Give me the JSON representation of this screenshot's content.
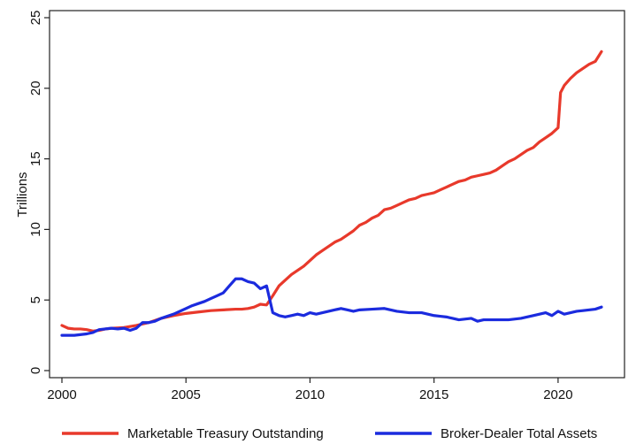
{
  "chart_data": {
    "type": "line",
    "ylabel": "Trillions",
    "xlim": [
      2000,
      2022
    ],
    "ylim": [
      0,
      25
    ],
    "x_ticks": [
      "2000",
      "2005",
      "2010",
      "2015",
      "2020"
    ],
    "y_ticks": [
      "0",
      "5",
      "10",
      "15",
      "20",
      "25"
    ],
    "grid": false,
    "legend_position": "bottom",
    "series": [
      {
        "name": "Marketable Treasury Outstanding",
        "color": "#e8392b",
        "x": [
          2000,
          2000.25,
          2000.5,
          2000.75,
          2001,
          2001.25,
          2001.5,
          2001.75,
          2002,
          2002.5,
          2003,
          2003.5,
          2004,
          2004.5,
          2005,
          2005.5,
          2006,
          2006.5,
          2007,
          2007.25,
          2007.5,
          2007.75,
          2008,
          2008.25,
          2008.5,
          2008.75,
          2009,
          2009.25,
          2009.5,
          2009.75,
          2010,
          2010.25,
          2010.5,
          2010.75,
          2011,
          2011.25,
          2011.5,
          2011.75,
          2012,
          2012.25,
          2012.5,
          2012.75,
          2013,
          2013.25,
          2013.5,
          2013.75,
          2014,
          2014.25,
          2014.5,
          2014.75,
          2015,
          2015.25,
          2015.5,
          2015.75,
          2016,
          2016.25,
          2016.5,
          2016.75,
          2017,
          2017.25,
          2017.5,
          2017.75,
          2018,
          2018.25,
          2018.5,
          2018.75,
          2019,
          2019.25,
          2019.5,
          2019.75,
          2020,
          2020.1,
          2020.25,
          2020.5,
          2020.75,
          2021,
          2021.25,
          2021.5,
          2021.75
        ],
        "values": [
          3.2,
          3.0,
          2.95,
          2.95,
          2.9,
          2.8,
          2.85,
          2.95,
          3.0,
          3.05,
          3.2,
          3.4,
          3.7,
          3.9,
          4.05,
          4.15,
          4.25,
          4.3,
          4.35,
          4.35,
          4.4,
          4.5,
          4.7,
          4.65,
          5.3,
          6.0,
          6.4,
          6.8,
          7.1,
          7.4,
          7.8,
          8.2,
          8.5,
          8.8,
          9.1,
          9.3,
          9.6,
          9.9,
          10.3,
          10.5,
          10.8,
          11.0,
          11.4,
          11.5,
          11.7,
          11.9,
          12.1,
          12.2,
          12.4,
          12.5,
          12.6,
          12.8,
          13.0,
          13.2,
          13.4,
          13.5,
          13.7,
          13.8,
          13.9,
          14.0,
          14.2,
          14.5,
          14.8,
          15.0,
          15.3,
          15.6,
          15.8,
          16.2,
          16.5,
          16.8,
          17.2,
          19.7,
          20.2,
          20.7,
          21.1,
          21.4,
          21.7,
          21.9,
          22.6
        ]
      },
      {
        "name": "Broker-Dealer Total Assets",
        "color": "#1b2bde",
        "x": [
          2000,
          2000.5,
          2001,
          2001.25,
          2001.5,
          2002,
          2002.25,
          2002.5,
          2002.75,
          2003,
          2003.25,
          2003.5,
          2003.75,
          2004,
          2004.5,
          2005,
          2005.25,
          2005.5,
          2005.75,
          2006,
          2006.25,
          2006.5,
          2006.75,
          2007,
          2007.25,
          2007.5,
          2007.75,
          2008,
          2008.25,
          2008.5,
          2008.75,
          2009,
          2009.25,
          2009.5,
          2009.75,
          2010,
          2010.25,
          2010.5,
          2010.75,
          2011,
          2011.25,
          2011.5,
          2011.75,
          2012,
          2012.5,
          2013,
          2013.5,
          2014,
          2014.5,
          2015,
          2015.25,
          2015.5,
          2015.75,
          2016,
          2016.5,
          2016.75,
          2017,
          2017.5,
          2018,
          2018.5,
          2019,
          2019.25,
          2019.5,
          2019.75,
          2020,
          2020.25,
          2020.5,
          2020.75,
          2021,
          2021.5,
          2021.75
        ],
        "values": [
          2.5,
          2.5,
          2.6,
          2.7,
          2.9,
          3.0,
          2.95,
          3.0,
          2.85,
          3.0,
          3.4,
          3.4,
          3.5,
          3.7,
          4.0,
          4.4,
          4.6,
          4.75,
          4.9,
          5.1,
          5.3,
          5.5,
          6.0,
          6.5,
          6.5,
          6.3,
          6.2,
          5.8,
          6.0,
          4.1,
          3.9,
          3.8,
          3.9,
          4.0,
          3.9,
          4.1,
          4.0,
          4.1,
          4.2,
          4.3,
          4.4,
          4.3,
          4.2,
          4.3,
          4.35,
          4.4,
          4.2,
          4.1,
          4.1,
          3.9,
          3.85,
          3.8,
          3.7,
          3.6,
          3.7,
          3.5,
          3.6,
          3.6,
          3.6,
          3.7,
          3.9,
          4.0,
          4.1,
          3.9,
          4.2,
          4.0,
          4.1,
          4.2,
          4.25,
          4.35,
          4.5
        ]
      }
    ]
  }
}
